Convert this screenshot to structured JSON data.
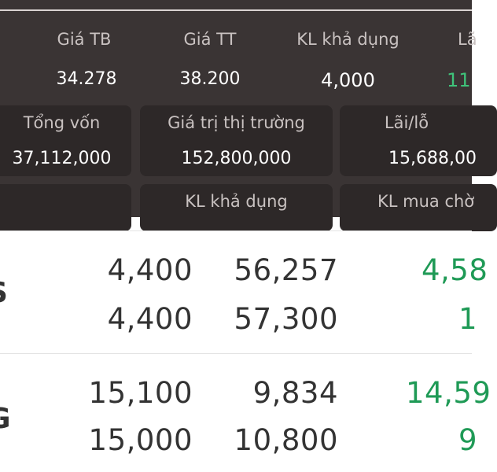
{
  "header_stats": {
    "avg_price_label": "Giá TB",
    "avg_price_value": "34.278",
    "market_price_label": "Giá TT",
    "market_price_value": "38.200",
    "available_qty_label": "KL khả dụng",
    "available_qty_value": "4,000",
    "pnl_label_partial": "Lã",
    "pnl_value_partial": "11"
  },
  "summary_cards": {
    "total_capital_label": "Tổng vốn",
    "total_capital_value": "37,112,000",
    "market_value_label": "Giá trị thị trường",
    "market_value_value": "152,800,000",
    "profit_loss_label": "Lãi/lỗ",
    "profit_loss_value": "15,688,00"
  },
  "column_headers": {
    "available_qty": "KL khả dụng",
    "pending_buy_qty": "KL mua chờ"
  },
  "rows": [
    {
      "symbol_fragment": "S",
      "line1": {
        "price": "4,400",
        "volume": "56,257",
        "change": "4,58"
      },
      "line2": {
        "price": "4,400",
        "volume": "57,300",
        "change": "1"
      }
    },
    {
      "symbol_fragment": "G",
      "line1": {
        "price": "15,100",
        "volume": "9,834",
        "change": "14,59"
      },
      "line2": {
        "price": "15,000",
        "volume": "10,800",
        "change": "9"
      }
    }
  ],
  "colors": {
    "panel_bg": "#3a3434",
    "card_bg": "#2d2828",
    "positive": "#3fc37a"
  }
}
